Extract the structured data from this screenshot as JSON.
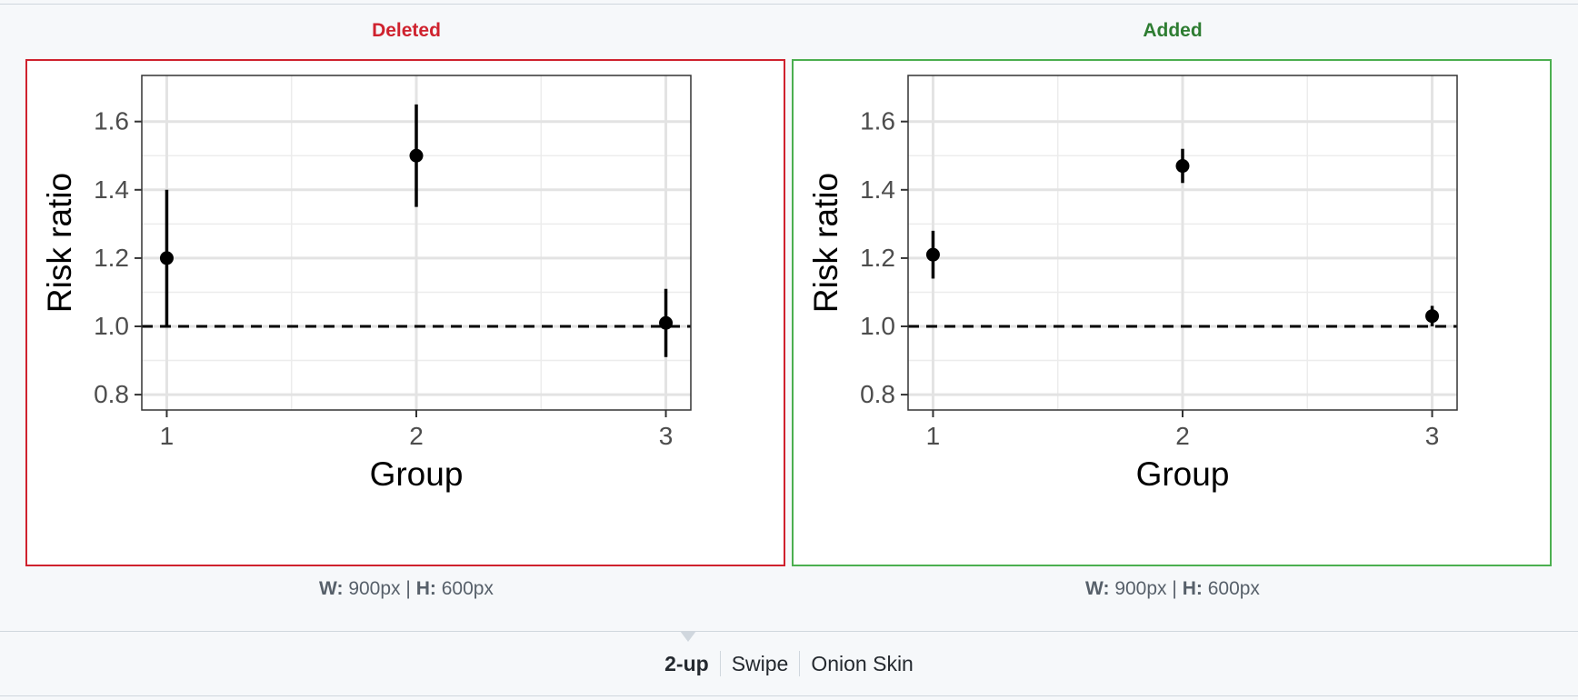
{
  "deleted": {
    "label": "Deleted",
    "width_label": "W:",
    "width_value": "900px",
    "separator": "|",
    "height_label": "H:",
    "height_value": "600px"
  },
  "added": {
    "label": "Added",
    "width_label": "W:",
    "width_value": "900px",
    "separator": "|",
    "height_label": "H:",
    "height_value": "600px"
  },
  "view_modes": {
    "two_up": "2-up",
    "swipe": "Swipe",
    "onion_skin": "Onion Skin"
  },
  "colors": {
    "deleted": "#cf222e",
    "added": "#4caf50"
  },
  "chart_data": [
    {
      "type": "scatter",
      "title": "",
      "xlabel": "Group",
      "ylabel": "Risk ratio",
      "categories": [
        "1",
        "2",
        "3"
      ],
      "xlim": [
        0.9,
        3.1
      ],
      "ylim": [
        0.755,
        1.735
      ],
      "yticks": [
        0.8,
        1.0,
        1.2,
        1.4,
        1.6
      ],
      "ytick_labels": [
        "0.8",
        "1.0",
        "1.2",
        "1.4",
        "1.6"
      ],
      "reference_line": 1.0,
      "grid": true,
      "points": [
        {
          "x": 1,
          "y": 1.2,
          "low": 1.0,
          "high": 1.4
        },
        {
          "x": 2,
          "y": 1.5,
          "low": 1.35,
          "high": 1.65
        },
        {
          "x": 3,
          "y": 1.01,
          "low": 0.91,
          "high": 1.11
        }
      ]
    },
    {
      "type": "scatter",
      "title": "",
      "xlabel": "Group",
      "ylabel": "Risk ratio",
      "categories": [
        "1",
        "2",
        "3"
      ],
      "xlim": [
        0.9,
        3.1
      ],
      "ylim": [
        0.755,
        1.735
      ],
      "yticks": [
        0.8,
        1.0,
        1.2,
        1.4,
        1.6
      ],
      "ytick_labels": [
        "0.8",
        "1.0",
        "1.2",
        "1.4",
        "1.6"
      ],
      "reference_line": 1.0,
      "grid": true,
      "points": [
        {
          "x": 1,
          "y": 1.21,
          "low": 1.14,
          "high": 1.28
        },
        {
          "x": 2,
          "y": 1.47,
          "low": 1.42,
          "high": 1.52
        },
        {
          "x": 3,
          "y": 1.03,
          "low": 1.0,
          "high": 1.06
        }
      ]
    }
  ]
}
